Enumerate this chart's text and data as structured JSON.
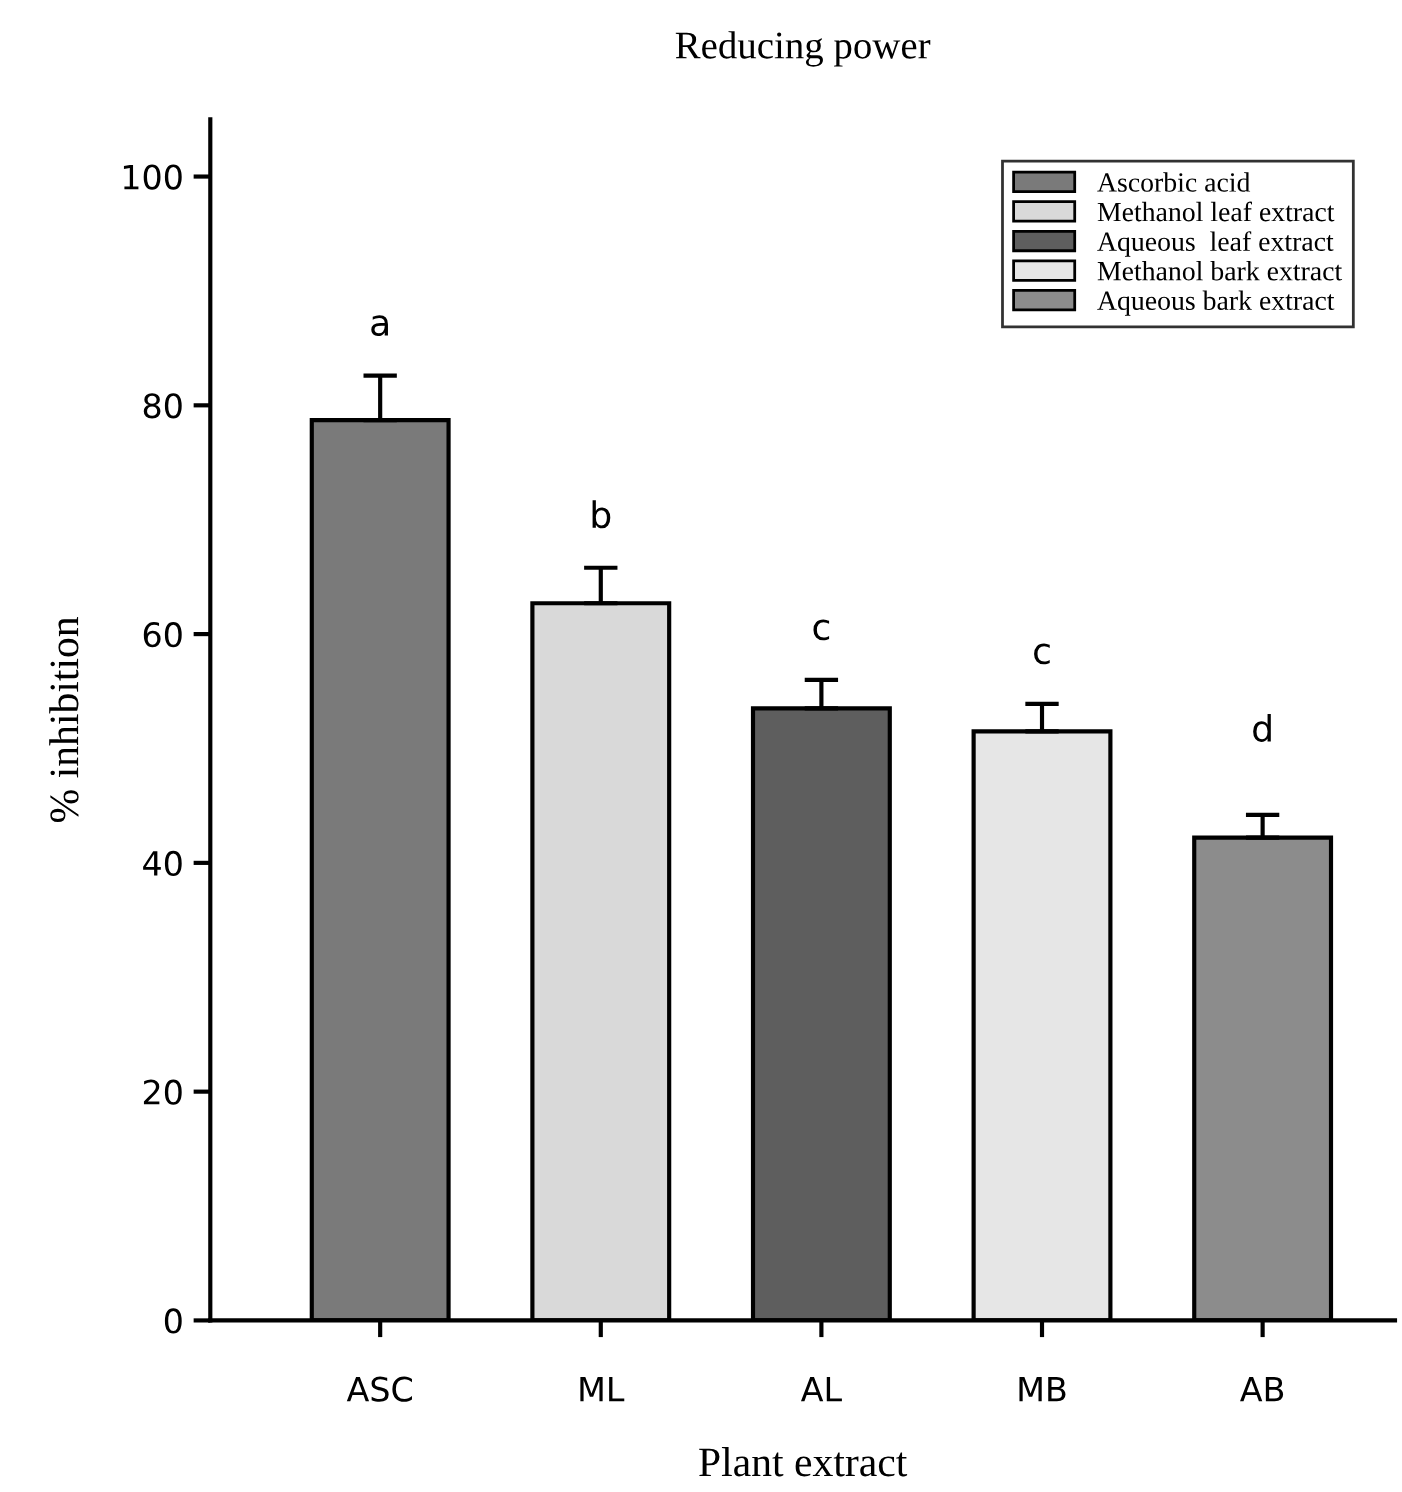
{
  "chart_data": {
    "type": "bar",
    "title": "Reducing power",
    "xlabel": "Plant extract",
    "ylabel": "% inhibition",
    "categories": [
      "ASC",
      "ML",
      "AL",
      "MB",
      "AB"
    ],
    "series": [
      {
        "name": "Ascorbic acid",
        "color": "#7a7a7a",
        "values": [
          78.7,
          null,
          null,
          null,
          null
        ],
        "errors": [
          3.9,
          null,
          null,
          null,
          null
        ]
      },
      {
        "name": "Methanol leaf extract",
        "color": "#d9d9d9",
        "values": [
          null,
          62.7,
          null,
          null,
          null
        ],
        "errors": [
          null,
          3.1,
          null,
          null,
          null
        ]
      },
      {
        "name": "Aqueous  leaf extract",
        "color": "#5e5e5e",
        "values": [
          null,
          null,
          53.5,
          null,
          null
        ],
        "errors": [
          null,
          null,
          2.5,
          null,
          null
        ]
      },
      {
        "name": "Methanol bark extract",
        "color": "#e6e6e6",
        "values": [
          null,
          null,
          null,
          51.5,
          null
        ],
        "errors": [
          null,
          null,
          null,
          2.4,
          null
        ]
      },
      {
        "name": "Aqueous bark extract",
        "color": "#8c8c8c",
        "values": [
          null,
          null,
          null,
          null,
          42.2
        ],
        "errors": [
          null,
          null,
          null,
          null,
          2.0
        ]
      }
    ],
    "annotations": [
      "a",
      "b",
      "c",
      "c",
      "d"
    ],
    "ylim": [
      0,
      105
    ],
    "yticks": [
      0,
      20,
      40,
      60,
      80,
      100
    ],
    "grid": false,
    "legend": "top right"
  }
}
